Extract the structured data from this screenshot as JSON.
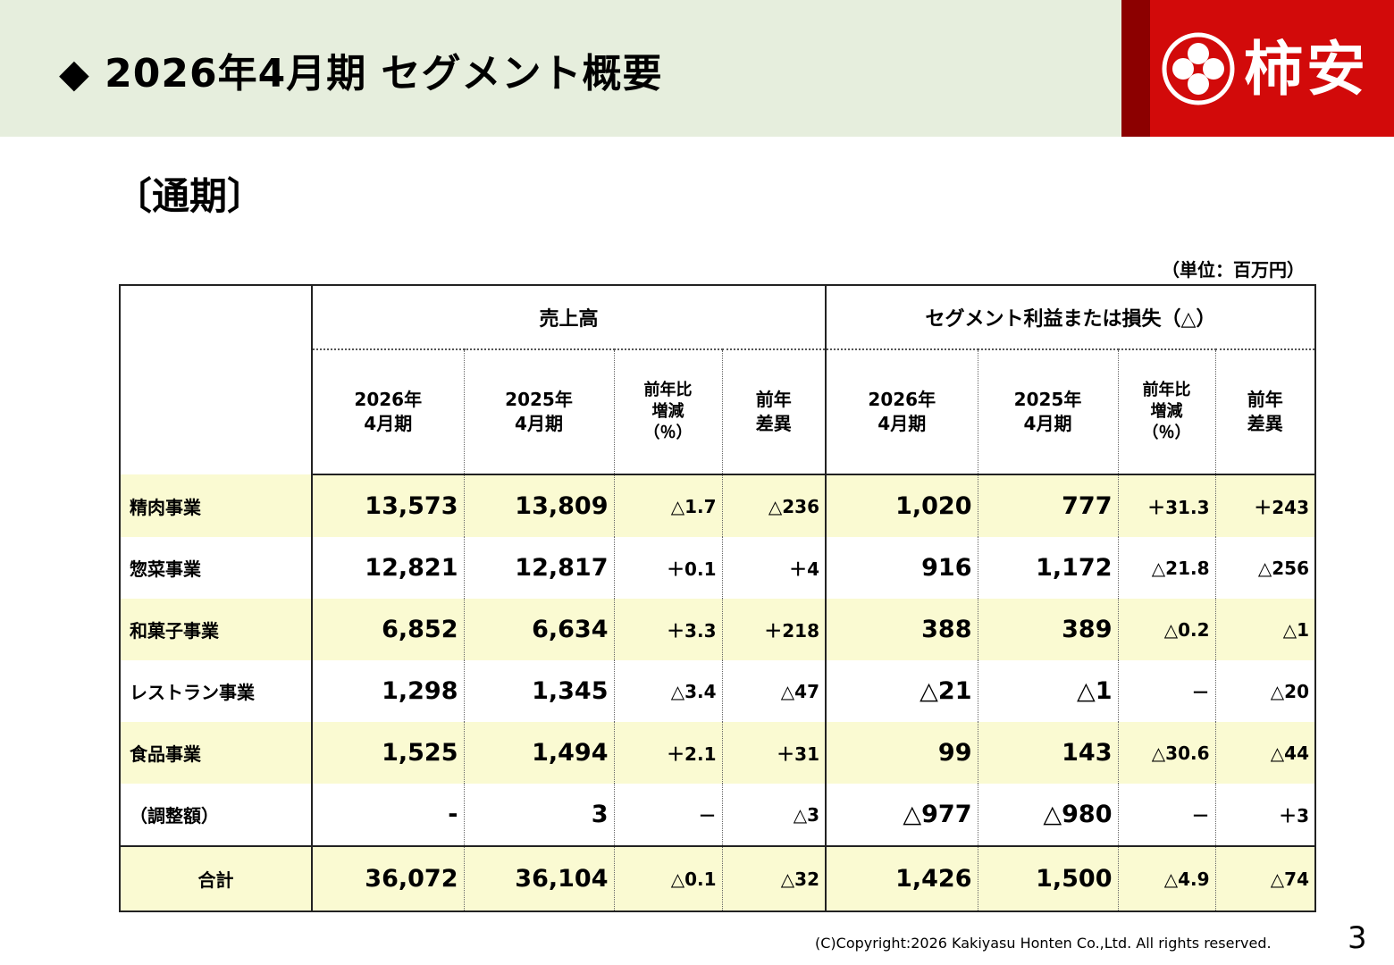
{
  "header": {
    "title": "◆ 2026年4月期 セグメント概要",
    "logo_text": "柿安"
  },
  "section_title": "〔通期〕",
  "unit_label": "（単位：百万円）",
  "table": {
    "group_sales": "売上高",
    "group_profit": "セグメント利益または損失（△）",
    "col_2026": [
      "2026年",
      "4月期"
    ],
    "col_2025": [
      "2025年",
      "4月期"
    ],
    "col_yoy": [
      "前年比",
      "増減",
      "（％）"
    ],
    "col_diff": [
      "前年",
      "差異"
    ],
    "rows": [
      {
        "name": "精肉事業",
        "s26": "13,573",
        "s25": "13,809",
        "spct": "△1.7",
        "sdiff": "△236",
        "p26": "1,020",
        "p25": "777",
        "ppct": "＋31.3",
        "pdiff": "＋243"
      },
      {
        "name": "惣菜事業",
        "s26": "12,821",
        "s25": "12,817",
        "spct": "＋0.1",
        "sdiff": "＋4",
        "p26": "916",
        "p25": "1,172",
        "ppct": "△21.8",
        "pdiff": "△256"
      },
      {
        "name": "和菓子事業",
        "s26": "6,852",
        "s25": "6,634",
        "spct": "＋3.3",
        "sdiff": "＋218",
        "p26": "388",
        "p25": "389",
        "ppct": "△0.2",
        "pdiff": "△1"
      },
      {
        "name": "レストラン事業",
        "s26": "1,298",
        "s25": "1,345",
        "spct": "△3.4",
        "sdiff": "△47",
        "p26": "△21",
        "p25": "△1",
        "ppct": "－",
        "pdiff": "△20"
      },
      {
        "name": "食品事業",
        "s26": "1,525",
        "s25": "1,494",
        "spct": "＋2.1",
        "sdiff": "＋31",
        "p26": "99",
        "p25": "143",
        "ppct": "△30.6",
        "pdiff": "△44"
      },
      {
        "name": "（調整額）",
        "s26": "-",
        "s25": "3",
        "spct": "－",
        "sdiff": "△3",
        "p26": "△977",
        "p25": "△980",
        "ppct": "－",
        "pdiff": "＋3"
      }
    ],
    "total": {
      "name": "合計",
      "s26": "36,072",
      "s25": "36,104",
      "spct": "△0.1",
      "sdiff": "△32",
      "p26": "1,426",
      "p25": "1,500",
      "ppct": "△4.9",
      "pdiff": "△74"
    }
  },
  "footer": {
    "copyright": "(C)Copyright:2026 Kakiyasu Honten Co.,Ltd.  All rights reserved.",
    "page_number": "3"
  },
  "colors": {
    "header_band": "#e6eedd",
    "logo_red": "#d20a0a",
    "logo_dark": "#8c0000",
    "row_highlight": "#fafad2"
  },
  "icons": [
    "diamond-bullet",
    "kakiyasu-flower-logo-mark"
  ]
}
